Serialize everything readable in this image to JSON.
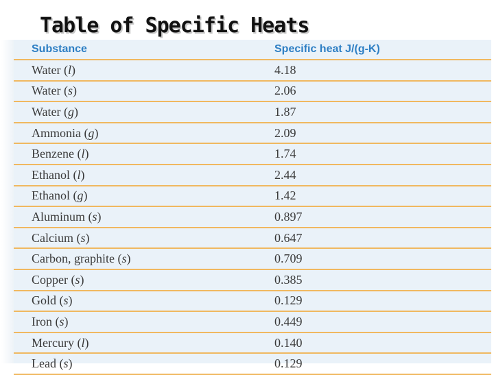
{
  "title": "Table of Specific Heats",
  "table": {
    "headers": {
      "substance": "Substance",
      "specific_heat": "Specific heat J/(g-K)"
    },
    "rows": [
      {
        "name": "Water",
        "phase": "l",
        "value": "4.18"
      },
      {
        "name": "Water",
        "phase": "s",
        "value": "2.06"
      },
      {
        "name": "Water",
        "phase": "g",
        "value": "1.87"
      },
      {
        "name": "Ammonia",
        "phase": "g",
        "value": "2.09"
      },
      {
        "name": "Benzene",
        "phase": "l",
        "value": "1.74"
      },
      {
        "name": "Ethanol",
        "phase": "l",
        "value": "2.44"
      },
      {
        "name": "Ethanol",
        "phase": "g",
        "value": "1.42"
      },
      {
        "name": "Aluminum",
        "phase": "s",
        "value": "0.897"
      },
      {
        "name": "Calcium",
        "phase": "s",
        "value": "0.647"
      },
      {
        "name": "Carbon, graphite",
        "phase": "s",
        "value": "0.709"
      },
      {
        "name": "Copper",
        "phase": "s",
        "value": "0.385"
      },
      {
        "name": "Gold",
        "phase": "s",
        "value": "0.129"
      },
      {
        "name": "Iron",
        "phase": "s",
        "value": "0.449"
      },
      {
        "name": "Mercury",
        "phase": "l",
        "value": "0.140"
      },
      {
        "name": "Lead",
        "phase": "s",
        "value": "0.129"
      }
    ]
  },
  "colors": {
    "header_text": "#2e7fc4",
    "row_divider": "#f0b860",
    "panel_background": "#eaf2f9",
    "body_text": "#3a3a3a"
  }
}
